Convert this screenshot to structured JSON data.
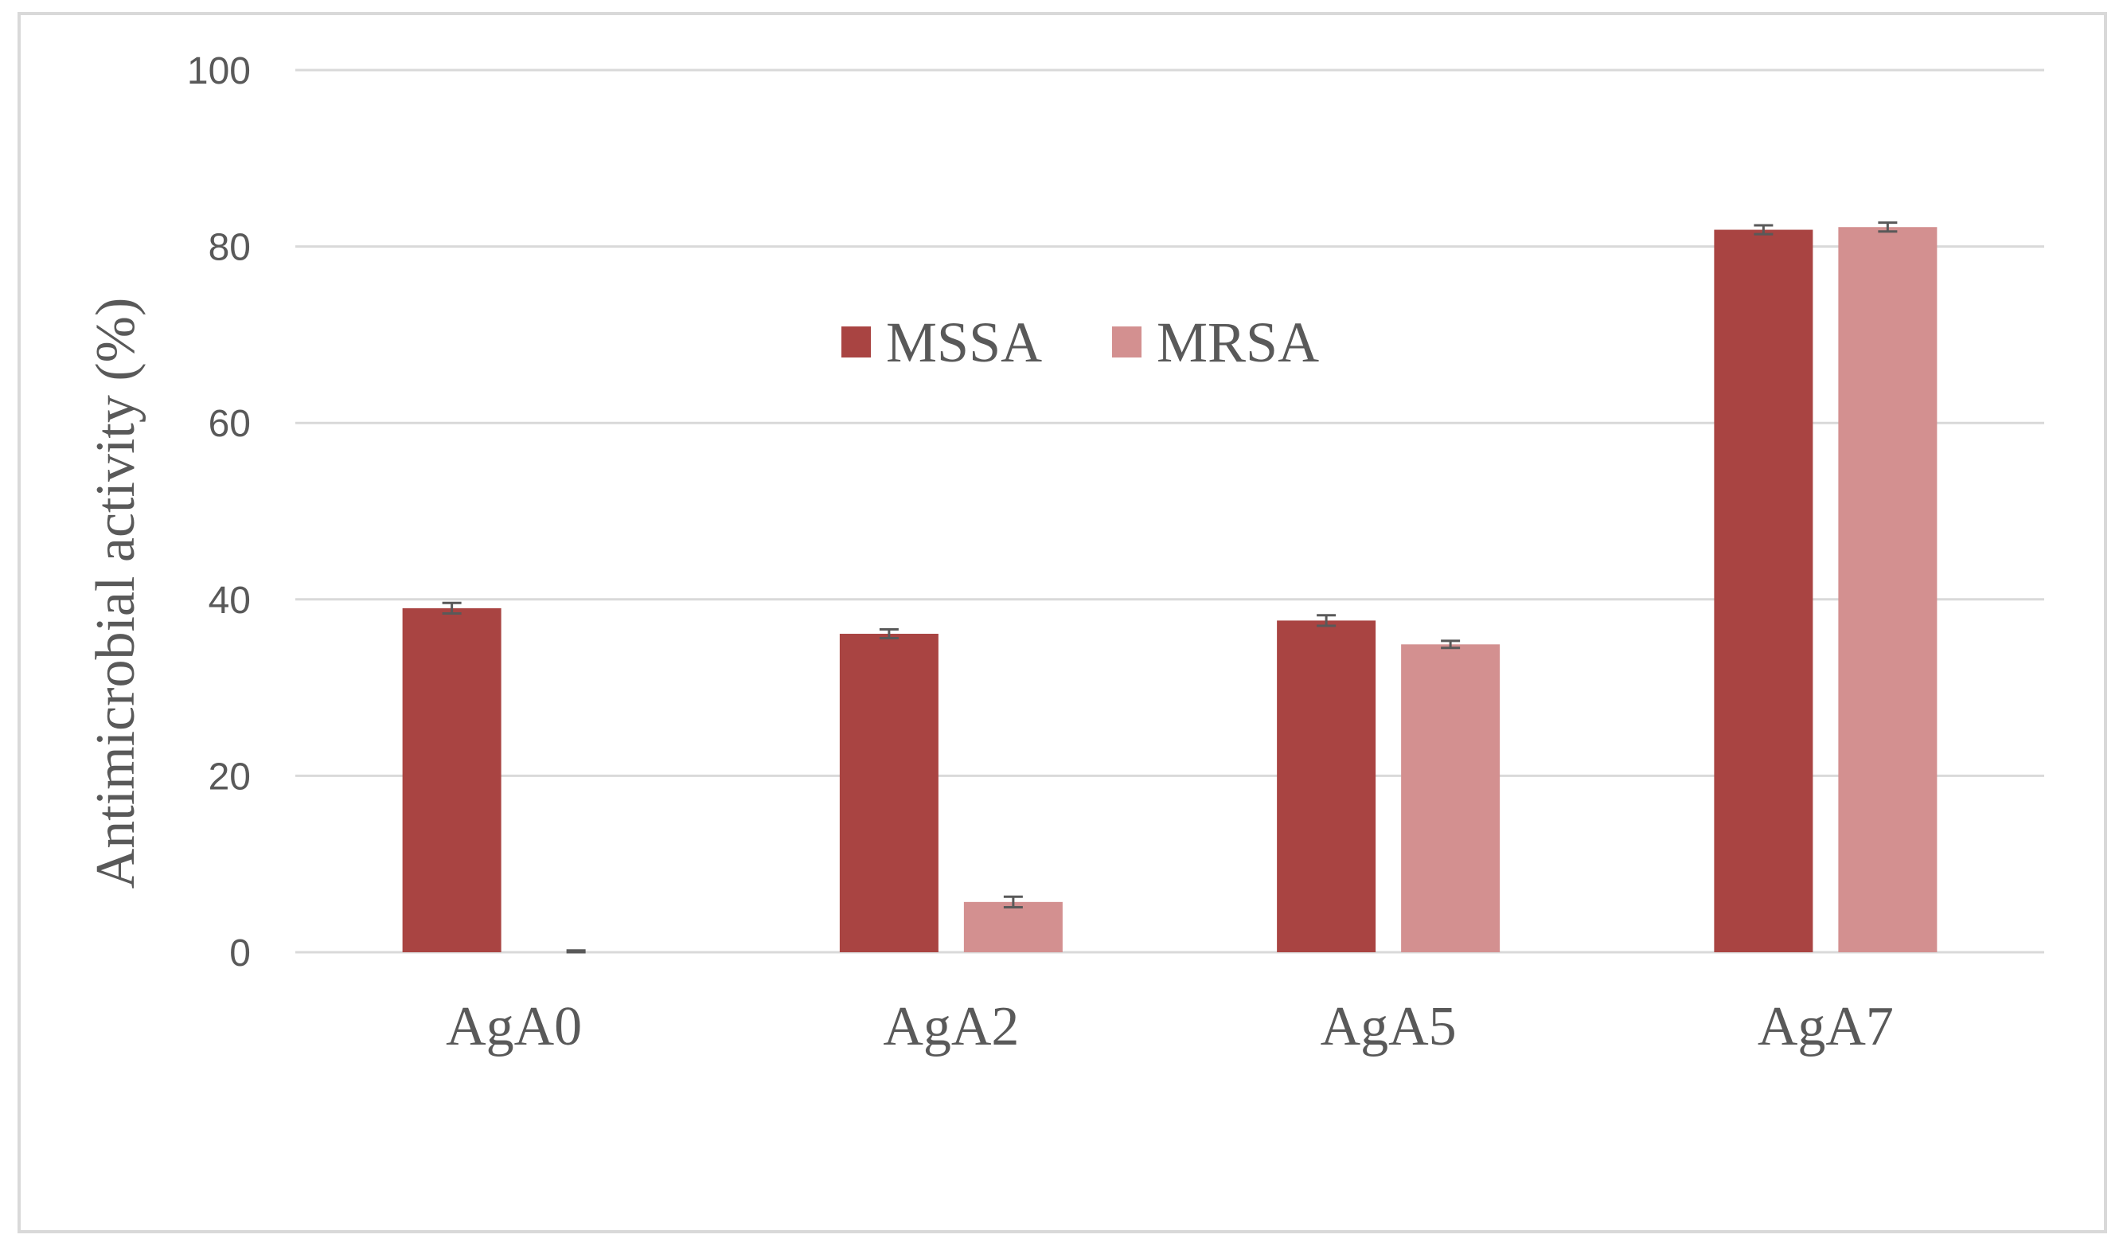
{
  "chart_data": {
    "type": "bar",
    "title": "",
    "xlabel": "",
    "ylabel": "Antimicrobial activity  (%)",
    "ylim": [
      0,
      100
    ],
    "yticks": [
      0,
      20,
      40,
      60,
      80,
      100
    ],
    "grid": true,
    "legend_position": "top-center",
    "categories": [
      "AgA0",
      "AgA2",
      "AgA5",
      "AgA7"
    ],
    "series": [
      {
        "name": "MSSA",
        "color": "#A94442",
        "values": [
          39.0,
          36.1,
          37.6,
          81.9
        ],
        "errors": [
          0.6,
          0.5,
          0.6,
          0.5
        ]
      },
      {
        "name": "MRSA",
        "color": "#D39090",
        "values": [
          0.0,
          5.7,
          34.9,
          82.2
        ],
        "errors": [
          0.2,
          0.6,
          0.4,
          0.5
        ]
      }
    ]
  }
}
